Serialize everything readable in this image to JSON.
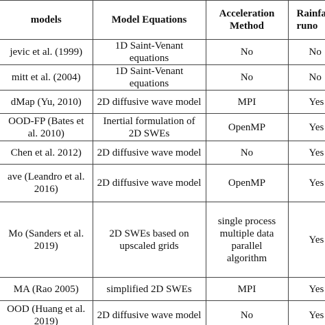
{
  "table": {
    "header": [
      "models",
      "Model Equations",
      "Acceleration Method",
      "Rainfa runo"
    ],
    "rows": [
      [
        "jevic et al. (1999)",
        "1D Saint-Venant equations",
        "No",
        "No"
      ],
      [
        "mitt et al. (2004)",
        "1D Saint-Venant equations",
        "No",
        "No"
      ],
      [
        "dMap (Yu, 2010)",
        "2D diffusive wave model",
        "MPI",
        "Yes"
      ],
      [
        "OOD-FP (Bates et al. 2010)",
        "Inertial formulation of 2D SWEs",
        "OpenMP",
        "Yes"
      ],
      [
        "Chen et al. 2012)",
        "2D diffusive wave model",
        "No",
        "Yes"
      ],
      [
        "ave (Leandro et al. 2016)",
        "2D diffusive wave model",
        "OpenMP",
        "Yes"
      ],
      [
        "Mo (Sanders et al. 2019)",
        "2D SWEs based on upscaled grids",
        "single process multiple data parallel algorithm",
        "Yes"
      ],
      [
        "MA (Rao 2005)",
        "simplified 2D SWEs",
        "MPI",
        "Yes"
      ],
      [
        "OOD (Huang et al. 2019)",
        "2D diffusive wave model",
        "No",
        "Yes"
      ]
    ]
  }
}
